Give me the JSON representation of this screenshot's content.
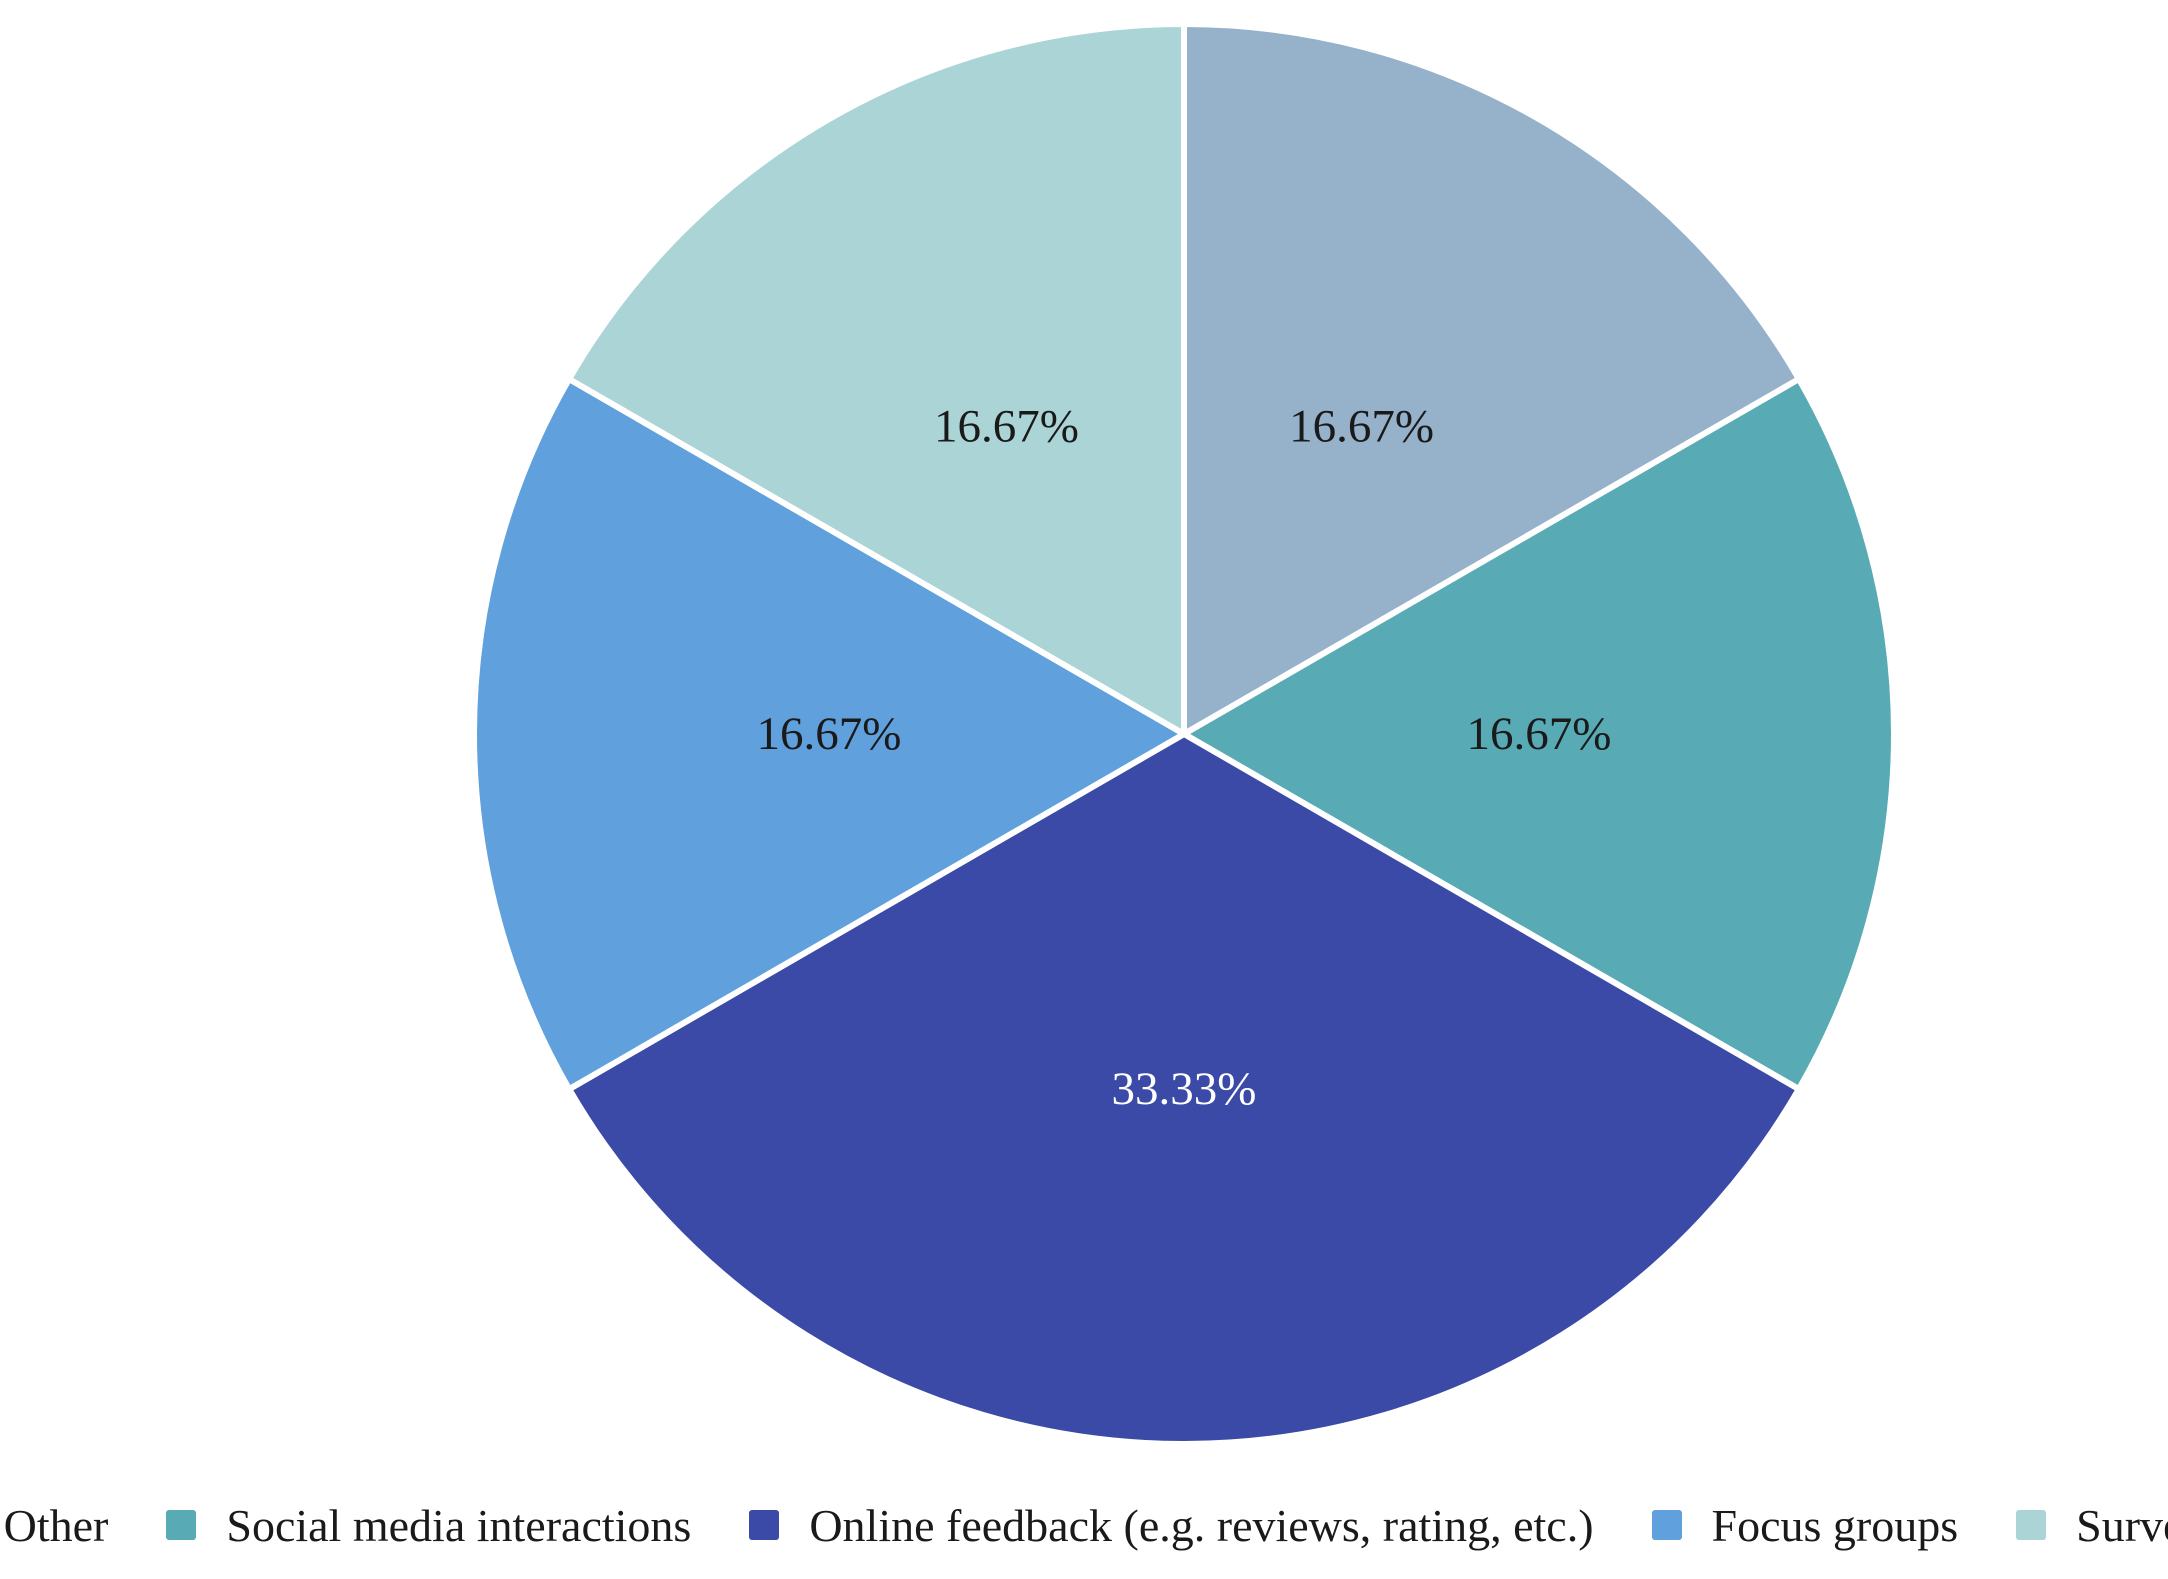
{
  "chart_data": {
    "type": "pie",
    "title": "",
    "slices": [
      {
        "label": "Other",
        "value": 16.67,
        "display": "16.67%",
        "color": "#96b1ca",
        "label_color": "#1a1a1a"
      },
      {
        "label": "Social media interactions",
        "value": 16.67,
        "display": "16.67%",
        "color": "#58abb4",
        "label_color": "#1a1a1a"
      },
      {
        "label": "Online feedback (e.g. reviews, rating, etc.)",
        "value": 33.33,
        "display": "33.33%",
        "color": "#3a4aa6",
        "label_color": "#ffffff"
      },
      {
        "label": "Focus groups",
        "value": 16.67,
        "display": "16.67%",
        "color": "#5fa0dd",
        "label_color": "#1a1a1a"
      },
      {
        "label": "Surveys",
        "value": 16.67,
        "display": "16.67%",
        "color": "#abd4d6",
        "label_color": "#1a1a1a"
      }
    ],
    "start_angle": "12 o'clock",
    "direction": "clockwise",
    "legend_position": "bottom"
  }
}
